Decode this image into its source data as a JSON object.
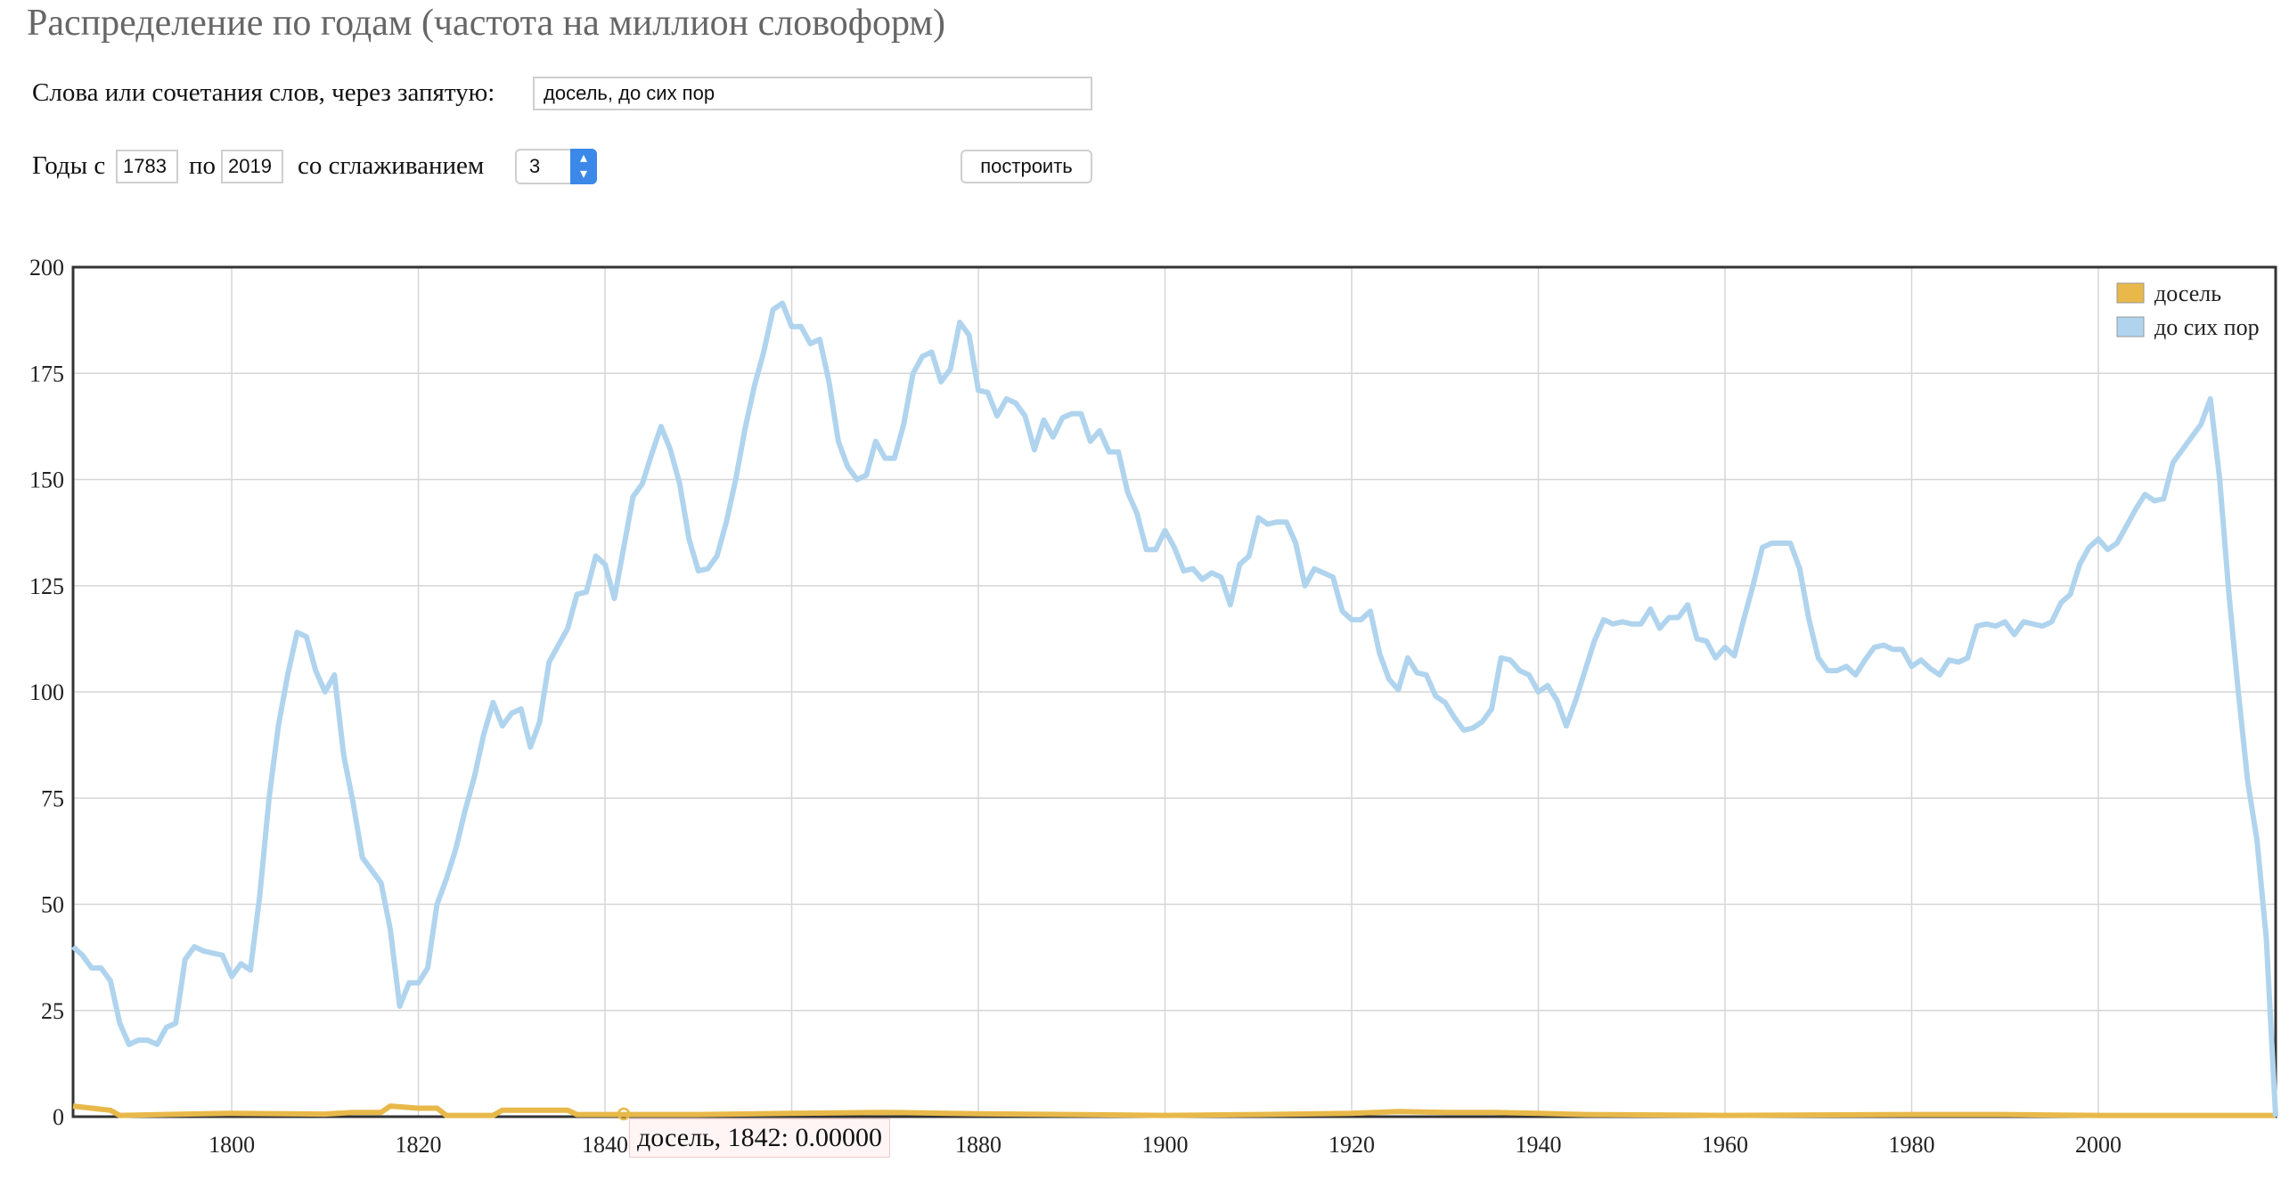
{
  "page": {
    "title": "Распределение по годам (частота на миллион словоформ)"
  },
  "form": {
    "words_label": "Слова или сочетания слов, через запятую:",
    "words_value": "досель, до сих пор",
    "years_from_label": "Годы с",
    "year_from": "1783",
    "years_to_label": "по",
    "year_to": "2019",
    "smoothing_label": "со сглаживанием",
    "smoothing_value": "3",
    "build_button": "построить"
  },
  "tooltip": {
    "text": "досель, 1842: 0.00000"
  },
  "chart_data": {
    "type": "line",
    "title": "",
    "xlabel": "",
    "ylabel": "",
    "xlim": [
      1783,
      2019
    ],
    "ylim": [
      0,
      200
    ],
    "x_ticks": [
      1800,
      1820,
      1840,
      1860,
      1880,
      1900,
      1920,
      1940,
      1960,
      1980,
      2000
    ],
    "y_ticks": [
      0,
      25,
      50,
      75,
      100,
      125,
      150,
      175,
      200
    ],
    "grid": true,
    "legend_position": "top-right",
    "highlight_point": {
      "series": "досель",
      "x": 1842,
      "y": 0
    },
    "series": [
      {
        "name": "досель",
        "color": "#e8b94a",
        "points": [
          [
            1783,
            2.5
          ],
          [
            1785,
            2
          ],
          [
            1787,
            1.5
          ],
          [
            1788,
            0.3
          ],
          [
            1795,
            0.6
          ],
          [
            1800,
            0.8
          ],
          [
            1810,
            0.6
          ],
          [
            1813,
            1
          ],
          [
            1816,
            1
          ],
          [
            1817,
            2.5
          ],
          [
            1820,
            2
          ],
          [
            1822,
            2
          ],
          [
            1823,
            0.3
          ],
          [
            1828,
            0.3
          ],
          [
            1829,
            1.5
          ],
          [
            1836,
            1.5
          ],
          [
            1837,
            0.5
          ],
          [
            1850,
            0.5
          ],
          [
            1860,
            0.8
          ],
          [
            1870,
            1
          ],
          [
            1880,
            0.7
          ],
          [
            1890,
            0.5
          ],
          [
            1900,
            0.3
          ],
          [
            1910,
            0.5
          ],
          [
            1920,
            0.8
          ],
          [
            1925,
            1.2
          ],
          [
            1930,
            1
          ],
          [
            1935,
            1
          ],
          [
            1940,
            0.8
          ],
          [
            1945,
            0.5
          ],
          [
            1960,
            0.3
          ],
          [
            1980,
            0.5
          ],
          [
            1990,
            0.5
          ],
          [
            2000,
            0.3
          ],
          [
            2019,
            0.3
          ]
        ]
      },
      {
        "name": "до сих пор",
        "color": "#b0d4ee",
        "points": [
          [
            1783,
            40
          ],
          [
            1784,
            38
          ],
          [
            1785,
            35
          ],
          [
            1786,
            35
          ],
          [
            1787,
            32
          ],
          [
            1788,
            22
          ],
          [
            1789,
            17
          ],
          [
            1790,
            18
          ],
          [
            1791,
            18
          ],
          [
            1792,
            17
          ],
          [
            1793,
            21
          ],
          [
            1794,
            22
          ],
          [
            1795,
            37
          ],
          [
            1796,
            40
          ],
          [
            1797,
            39
          ],
          [
            1798,
            38.5
          ],
          [
            1799,
            38
          ],
          [
            1800,
            33
          ],
          [
            1801,
            36
          ],
          [
            1802,
            34.5
          ],
          [
            1803,
            52
          ],
          [
            1804,
            75
          ],
          [
            1805,
            92
          ],
          [
            1806,
            104
          ],
          [
            1807,
            114
          ],
          [
            1808,
            113
          ],
          [
            1809,
            105
          ],
          [
            1810,
            100
          ],
          [
            1811,
            104
          ],
          [
            1812,
            85
          ],
          [
            1813,
            74
          ],
          [
            1814,
            61
          ],
          [
            1815,
            58
          ],
          [
            1816,
            55
          ],
          [
            1817,
            44
          ],
          [
            1818,
            26
          ],
          [
            1819,
            31.5
          ],
          [
            1820,
            31.5
          ],
          [
            1821,
            35
          ],
          [
            1822,
            50
          ],
          [
            1823,
            56
          ],
          [
            1824,
            63
          ],
          [
            1825,
            72
          ],
          [
            1826,
            80
          ],
          [
            1827,
            90
          ],
          [
            1828,
            97.5
          ],
          [
            1829,
            92
          ],
          [
            1830,
            95
          ],
          [
            1831,
            96
          ],
          [
            1832,
            87
          ],
          [
            1833,
            93
          ],
          [
            1834,
            107
          ],
          [
            1835,
            111
          ],
          [
            1836,
            115
          ],
          [
            1837,
            123
          ],
          [
            1838,
            123.5
          ],
          [
            1839,
            132
          ],
          [
            1840,
            130
          ],
          [
            1841,
            122
          ],
          [
            1842,
            134
          ],
          [
            1843,
            146
          ],
          [
            1844,
            149
          ],
          [
            1845,
            156
          ],
          [
            1846,
            162.5
          ],
          [
            1847,
            157
          ],
          [
            1848,
            149
          ],
          [
            1849,
            136
          ],
          [
            1850,
            128.5
          ],
          [
            1851,
            129
          ],
          [
            1852,
            132
          ],
          [
            1853,
            140
          ],
          [
            1854,
            150
          ],
          [
            1855,
            162
          ],
          [
            1856,
            172
          ],
          [
            1857,
            180
          ],
          [
            1858,
            190
          ],
          [
            1859,
            191.5
          ],
          [
            1860,
            186
          ],
          [
            1861,
            186
          ],
          [
            1862,
            182
          ],
          [
            1863,
            183
          ],
          [
            1864,
            173
          ],
          [
            1865,
            159
          ],
          [
            1866,
            153
          ],
          [
            1867,
            150
          ],
          [
            1868,
            151
          ],
          [
            1869,
            159
          ],
          [
            1870,
            155
          ],
          [
            1871,
            155
          ],
          [
            1872,
            163
          ],
          [
            1873,
            175
          ],
          [
            1874,
            179
          ],
          [
            1875,
            180
          ],
          [
            1876,
            173
          ],
          [
            1877,
            176
          ],
          [
            1878,
            187
          ],
          [
            1879,
            184
          ],
          [
            1880,
            171
          ],
          [
            1881,
            170.5
          ],
          [
            1882,
            165
          ],
          [
            1883,
            169
          ],
          [
            1884,
            168
          ],
          [
            1885,
            165
          ],
          [
            1886,
            157
          ],
          [
            1887,
            164
          ],
          [
            1888,
            160
          ],
          [
            1889,
            164.5
          ],
          [
            1890,
            165.5
          ],
          [
            1891,
            165.5
          ],
          [
            1892,
            159
          ],
          [
            1893,
            161.5
          ],
          [
            1894,
            156.5
          ],
          [
            1895,
            156.5
          ],
          [
            1896,
            147
          ],
          [
            1897,
            142
          ],
          [
            1898,
            133.5
          ],
          [
            1899,
            133.5
          ],
          [
            1900,
            138
          ],
          [
            1901,
            134
          ],
          [
            1902,
            128.5
          ],
          [
            1903,
            129
          ],
          [
            1904,
            126.5
          ],
          [
            1905,
            128
          ],
          [
            1906,
            127
          ],
          [
            1907,
            120.5
          ],
          [
            1908,
            130
          ],
          [
            1909,
            132
          ],
          [
            1910,
            141
          ],
          [
            1911,
            139.5
          ],
          [
            1912,
            140
          ],
          [
            1913,
            140
          ],
          [
            1914,
            135
          ],
          [
            1915,
            125
          ],
          [
            1916,
            129
          ],
          [
            1917,
            128
          ],
          [
            1918,
            127
          ],
          [
            1919,
            119
          ],
          [
            1920,
            117
          ],
          [
            1921,
            117
          ],
          [
            1922,
            119
          ],
          [
            1923,
            109
          ],
          [
            1924,
            103
          ],
          [
            1925,
            100.5
          ],
          [
            1926,
            108
          ],
          [
            1927,
            104.5
          ],
          [
            1928,
            104
          ],
          [
            1929,
            99
          ],
          [
            1930,
            97.5
          ],
          [
            1931,
            94
          ],
          [
            1932,
            91
          ],
          [
            1933,
            91.5
          ],
          [
            1934,
            93
          ],
          [
            1935,
            96
          ],
          [
            1936,
            108
          ],
          [
            1937,
            107.5
          ],
          [
            1938,
            105
          ],
          [
            1939,
            104
          ],
          [
            1940,
            100
          ],
          [
            1941,
            101.5
          ],
          [
            1942,
            98
          ],
          [
            1943,
            92
          ],
          [
            1944,
            98
          ],
          [
            1945,
            105
          ],
          [
            1946,
            112
          ],
          [
            1947,
            117
          ],
          [
            1948,
            116
          ],
          [
            1949,
            116.5
          ],
          [
            1950,
            116
          ],
          [
            1951,
            116
          ],
          [
            1952,
            119.5
          ],
          [
            1953,
            115
          ],
          [
            1954,
            117.5
          ],
          [
            1955,
            117.5
          ],
          [
            1956,
            120.5
          ],
          [
            1957,
            112.5
          ],
          [
            1958,
            112
          ],
          [
            1959,
            108
          ],
          [
            1960,
            110.5
          ],
          [
            1961,
            108.5
          ],
          [
            1962,
            117
          ],
          [
            1963,
            125
          ],
          [
            1964,
            134
          ],
          [
            1965,
            135
          ],
          [
            1966,
            135
          ],
          [
            1967,
            135
          ],
          [
            1968,
            129
          ],
          [
            1969,
            117
          ],
          [
            1970,
            108
          ],
          [
            1971,
            105
          ],
          [
            1972,
            105
          ],
          [
            1973,
            106
          ],
          [
            1974,
            104
          ],
          [
            1975,
            107.5
          ],
          [
            1976,
            110.5
          ],
          [
            1977,
            111
          ],
          [
            1978,
            110
          ],
          [
            1979,
            110
          ],
          [
            1980,
            106
          ],
          [
            1981,
            107.5
          ],
          [
            1982,
            105.5
          ],
          [
            1983,
            104
          ],
          [
            1984,
            107.5
          ],
          [
            1985,
            107
          ],
          [
            1986,
            108
          ],
          [
            1987,
            115.5
          ],
          [
            1988,
            116
          ],
          [
            1989,
            115.5
          ],
          [
            1990,
            116.5
          ],
          [
            1991,
            113.5
          ],
          [
            1992,
            116.5
          ],
          [
            1993,
            116
          ],
          [
            1994,
            115.5
          ],
          [
            1995,
            116.5
          ],
          [
            1996,
            121
          ],
          [
            1997,
            123
          ],
          [
            1998,
            130
          ],
          [
            1999,
            134
          ],
          [
            2000,
            136
          ],
          [
            2001,
            133.5
          ],
          [
            2002,
            135
          ],
          [
            2003,
            139
          ],
          [
            2004,
            143
          ],
          [
            2005,
            146.5
          ],
          [
            2006,
            145
          ],
          [
            2007,
            145.5
          ],
          [
            2008,
            154
          ],
          [
            2009,
            157
          ],
          [
            2010,
            160
          ],
          [
            2011,
            163
          ],
          [
            2012,
            169
          ],
          [
            2013,
            150
          ],
          [
            2014,
            123
          ],
          [
            2015,
            100
          ],
          [
            2016,
            79
          ],
          [
            2017,
            65
          ],
          [
            2018,
            42
          ],
          [
            2019,
            0
          ]
        ]
      }
    ]
  }
}
